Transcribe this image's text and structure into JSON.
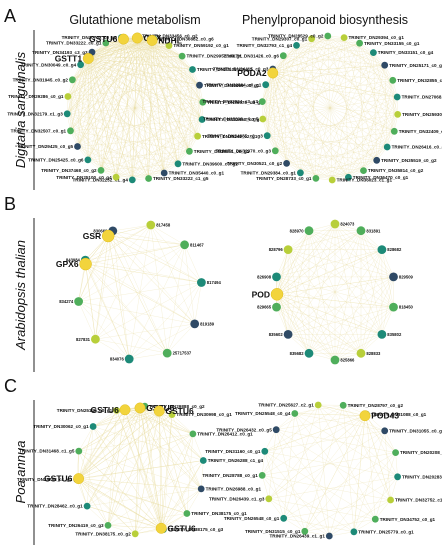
{
  "column_titles": [
    "Glutathione metabolism",
    "Phenylpropanoid biosynthesis"
  ],
  "panels": [
    {
      "letter": "A",
      "species": "Digitaria sanguinalis",
      "networks": [
        {
          "hub_labels": [
            "GSTU6",
            "GPX",
            "NDHL",
            "GSTT1"
          ],
          "node_labels": [
            "TRINITY_DN59192_c0_g1",
            "TRINITY_DN29952_c0_g1",
            "TRINITY_DN23108_c2_g2",
            "TRINITY_DN30969_c0_g1",
            "TRINITY_DN36570_c0_g3",
            "TRINITY_DN32460_c0_g3",
            "TRINITY_DN35248_c2_g1",
            "TRINITY_DN38851_c0_g1",
            "TRINITY_DN39600_c0_g2",
            "TRINITY_DN35440_c0_g1",
            "TRINITY_DN33222_c1_g5",
            "TRINITY_DN32232_c1_g4",
            "TRINITY_DN25100_c0_g4",
            "TRINITY_DN37468_c0_g2",
            "TRINITY_DN25425_c0_g6",
            "TRINITY_DN29425_c0_g5",
            "TRINITY_DN32507_c0_g1",
            "TRINITY_DN32179_c1_g3",
            "TRINITY_DN29286_c0_g1",
            "TRINITY_DN31945_c0_g2",
            "TRINITY_DN30049_c0_g4",
            "TRINITY_DN34193_c3_g3",
            "TRINITY_DN33222_c0_g1",
            "TRINITY_DN30702_c0_g6",
            "TRINITY_DN33456_c0_g2",
            "TRINITY_DN36682_c0_g6"
          ]
        },
        {
          "hub_labels": [
            "PODA2"
          ],
          "node_labels": [
            "TRINITY_DN29394_c0_g1",
            "TRINITY_DN33155_c0_g1",
            "TRINITY_DN33151_c0_g4",
            "TRINITY_DN25171_c0_g4",
            "TRINITY_DN32855_c0_g3",
            "TRINITY_DN27068_c0_g1",
            "TRINITY_DN25930_c0_g2",
            "TRINITY_DN32409_c0_g1",
            "TRINITY_DN26416_c0_g11",
            "TRINITY_DN35519_c0_g2",
            "TRINITY_DN35814_c0_g2",
            "TRINITY_DN36470_c0_g1",
            "TRINITY_DN36023_c1_g1",
            "TRINITY_DN28733_c0_g1",
            "TRINITY_DN29384_c0_g1",
            "TRINITY_DN30521_c0_g2",
            "TRINITY_DN32970_c0_g3",
            "TRINITY_DN34385_c0_g3",
            "TRINITY_DN28398_c0_g5",
            "TRINITY_DN33034_c3_g3",
            "TRINITY_DN32804_c0_g1",
            "TRINITY_DN34415_c0_g3",
            "TRINITY_DN31426_c0_g6",
            "TRINITY_DN32793_c1_g4",
            "TRINITY_DN29307_c0_g1",
            "TRINITY_DN28529_c0_g2"
          ]
        }
      ]
    },
    {
      "letter": "B",
      "species": "Arabidopsis thalian",
      "networks": [
        {
          "hub_labels": [
            "GSR",
            "GPX6"
          ],
          "node_labels": [
            "817458",
            "811467",
            "817494",
            "819189",
            "25717537",
            "834076",
            "827831",
            "834274",
            "843984",
            "830660"
          ]
        },
        {
          "hub_labels": [
            "POD"
          ],
          "node_labels": [
            "824073",
            "831891",
            "828682",
            "829509",
            "818450",
            "835802",
            "828833",
            "825866",
            "835682",
            "835602",
            "829665",
            "826908",
            "828796",
            "828970"
          ]
        }
      ]
    },
    {
      "letter": "C",
      "species": "Poa annua",
      "networks": [
        {
          "hub_labels": [
            "GSTU6",
            "GSTU6",
            "GSTU6",
            "GSTU6",
            "GSTU6"
          ],
          "node_labels": [
            "TRINITY_DN30998_c0_g1",
            "TRINITY_DN26412_c0_g1",
            "TRINITY_DN26288_c1_g4",
            "TRINITY_DN26988_c0_g1",
            "TRINITY_DN38175_c0_g1",
            "TRINITY_DN38175_c0_g3",
            "TRINITY_DN38175_c0_g2",
            "TRINITY_DN26419_c0_g3",
            "TRINITY_DN28462_c0_g1",
            "TRINITY_DN25788_c1_g2",
            "TRINITY_DN31468_c1_g5",
            "TRINITY_DN30062_c0_g1",
            "TRINITY_DN25148_c0_g1",
            "TRINITY_DN29888_c0_g2"
          ]
        },
        {
          "hub_labels": [
            "POD43"
          ],
          "node_labels": [
            "TRINITY_DN25627_c2_g1",
            "TRINITY_DN28797_c0_g2",
            "TRINITY_DN31088_c0_g1",
            "TRINITY_DN31055_c0_g4",
            "TRINITY_DN20208_c0_g1",
            "TRINITY_DN20283_c0_g4",
            "TRINITY_DN32752_c1_g1",
            "TRINITY_DN34752_c0_g1",
            "TRINITY_DN25779_c0_g1",
            "TRINITY_DN26439_c1_g1",
            "TRINITY_DN31515_c0_g1",
            "TRINITY_DN26548_c0_g1",
            "TRINITY_DN26439_c1_g3",
            "TRINITY_DN28788_c0_g1",
            "TRINITY_DN31160_c0_g1",
            "TRINITY_DN26432_c0_g5",
            "TRINITY_DN25548_c0_g4"
          ]
        }
      ]
    }
  ],
  "colors": {
    "hub": "#f2d43c",
    "node_yellow_green": "#b8cf3a",
    "node_green": "#4fae5b",
    "node_teal": "#1d8a78",
    "node_dark": "#2f4a66",
    "edge": "#e8dca0",
    "axis": "#222222"
  }
}
